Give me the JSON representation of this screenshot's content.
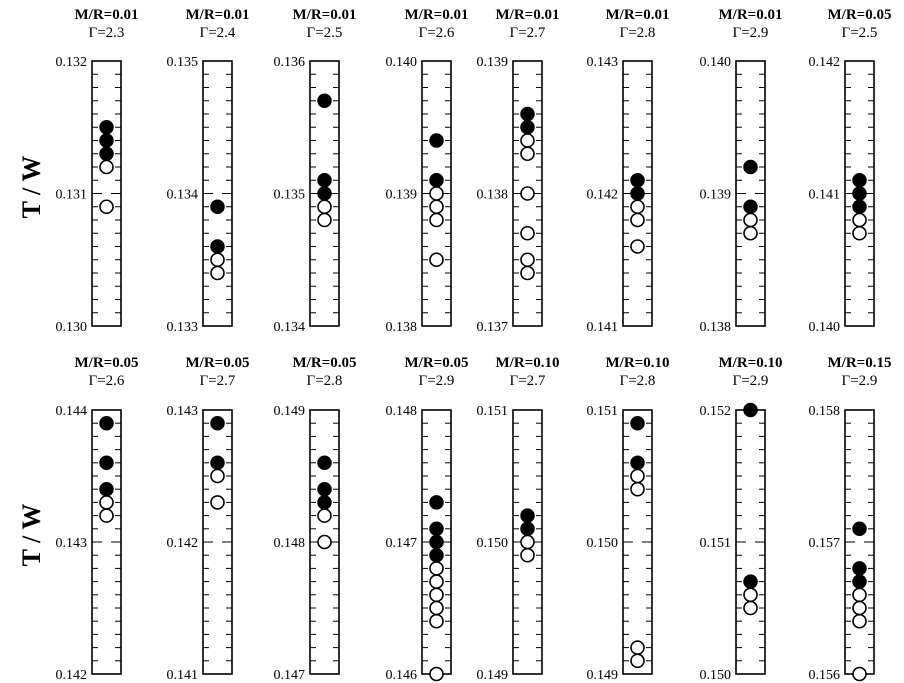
{
  "ylabel": "T / W",
  "chart_data": {
    "type": "scatter",
    "ylabel": "T / W",
    "marker_legend": {
      "filled": "filled circle",
      "open": "open circle"
    },
    "panels": [
      {
        "title": "M/R=0.01",
        "subtitle": "Γ=2.3",
        "ylim": [
          0.13,
          0.132
        ],
        "yticks": [
          "0.132",
          "0.131",
          "0.130"
        ],
        "filled": [
          0.1315,
          0.1314,
          0.1313
        ],
        "open": [
          0.1312,
          0.1309
        ]
      },
      {
        "title": "M/R=0.01",
        "subtitle": "Γ=2.4",
        "ylim": [
          0.133,
          0.135
        ],
        "yticks": [
          "0.135",
          "0.134",
          "0.133"
        ],
        "filled": [
          0.1339,
          0.1336
        ],
        "open": [
          0.1335,
          0.1334
        ]
      },
      {
        "title": "M/R=0.01",
        "subtitle": "Γ=2.5",
        "ylim": [
          0.134,
          0.136
        ],
        "yticks": [
          "0.136",
          "0.135",
          "0.134"
        ],
        "filled": [
          0.1357,
          0.1351,
          0.135
        ],
        "open": [
          0.1349,
          0.1348
        ]
      },
      {
        "title": "M/R=0.01",
        "subtitle": "Γ=2.6",
        "ylim": [
          0.138,
          0.14
        ],
        "yticks": [
          "0.140",
          "0.139",
          "0.138"
        ],
        "filled": [
          0.1394,
          0.1391
        ],
        "open": [
          0.139,
          0.1389,
          0.1388,
          0.1385
        ]
      },
      {
        "title": "M/R=0.01",
        "subtitle": "Γ=2.7",
        "ylim": [
          0.137,
          0.139
        ],
        "yticks": [
          "0.139",
          "0.138",
          "0.137"
        ],
        "filled": [
          0.1386,
          0.1385
        ],
        "open": [
          0.1384,
          0.1383,
          0.138,
          0.1377,
          0.1375,
          0.1374
        ]
      },
      {
        "title": "M/R=0.01",
        "subtitle": "Γ=2.8",
        "ylim": [
          0.141,
          0.143
        ],
        "yticks": [
          "0.143",
          "0.142",
          "0.141"
        ],
        "filled": [
          0.1421,
          0.142
        ],
        "open": [
          0.1419,
          0.1418,
          0.1416
        ]
      },
      {
        "title": "M/R=0.01",
        "subtitle": "Γ=2.9",
        "ylim": [
          0.138,
          0.14
        ],
        "yticks": [
          "0.140",
          "0.139",
          "0.138"
        ],
        "filled": [
          0.1392,
          0.1389
        ],
        "open": [
          0.1388,
          0.1387
        ]
      },
      {
        "title": "M/R=0.05",
        "subtitle": "Γ=2.5",
        "ylim": [
          0.14,
          0.142
        ],
        "yticks": [
          "0.142",
          "0.141",
          "0.140"
        ],
        "filled": [
          0.1411,
          0.141,
          0.1409
        ],
        "open": [
          0.1408,
          0.1407
        ]
      },
      {
        "title": "M/R=0.05",
        "subtitle": "Γ=2.6",
        "ylim": [
          0.142,
          0.144
        ],
        "yticks": [
          "0.144",
          "0.143",
          "0.142"
        ],
        "filled": [
          0.1439,
          0.1436,
          0.1434
        ],
        "open": [
          0.1433,
          0.1432
        ]
      },
      {
        "title": "M/R=0.05",
        "subtitle": "Γ=2.7",
        "ylim": [
          0.141,
          0.143
        ],
        "yticks": [
          "0.143",
          "0.142",
          "0.141"
        ],
        "filled": [
          0.1429,
          0.1426
        ],
        "open": [
          0.1425,
          0.1423
        ]
      },
      {
        "title": "M/R=0.05",
        "subtitle": "Γ=2.8",
        "ylim": [
          0.147,
          0.149
        ],
        "yticks": [
          "0.149",
          "0.148",
          "0.147"
        ],
        "filled": [
          0.1486,
          0.1484,
          0.1483
        ],
        "open": [
          0.1482,
          0.148
        ]
      },
      {
        "title": "M/R=0.05",
        "subtitle": "Γ=2.9",
        "ylim": [
          0.146,
          0.148
        ],
        "yticks": [
          "0.148",
          "0.147",
          "0.146"
        ],
        "filled": [
          0.1473,
          0.1471,
          0.147,
          0.1469
        ],
        "open": [
          0.1468,
          0.1467,
          0.1466,
          0.1465,
          0.1464,
          0.146
        ]
      },
      {
        "title": "M/R=0.10",
        "subtitle": "Γ=2.7",
        "ylim": [
          0.149,
          0.151
        ],
        "yticks": [
          "0.151",
          "0.150",
          "0.149"
        ],
        "filled": [
          0.1502,
          0.1501
        ],
        "open": [
          0.15,
          0.1499
        ]
      },
      {
        "title": "M/R=0.10",
        "subtitle": "Γ=2.8",
        "ylim": [
          0.149,
          0.151
        ],
        "yticks": [
          "0.151",
          "0.150",
          "0.149"
        ],
        "filled": [
          0.1509,
          0.1506
        ],
        "open": [
          0.1505,
          0.1504,
          0.1492,
          0.1491
        ]
      },
      {
        "title": "M/R=0.10",
        "subtitle": "Γ=2.9",
        "ylim": [
          0.15,
          0.152
        ],
        "yticks": [
          "0.152",
          "0.151",
          "0.150"
        ],
        "filled": [
          0.152,
          0.1507
        ],
        "open": [
          0.1506,
          0.1505
        ]
      },
      {
        "title": "M/R=0.15",
        "subtitle": "Γ=2.9",
        "ylim": [
          0.156,
          0.158
        ],
        "yticks": [
          "0.158",
          "0.157",
          "0.156"
        ],
        "filled": [
          0.1571,
          0.1568,
          0.1567
        ],
        "open": [
          0.1566,
          0.1565,
          0.1564,
          0.156
        ]
      }
    ]
  }
}
